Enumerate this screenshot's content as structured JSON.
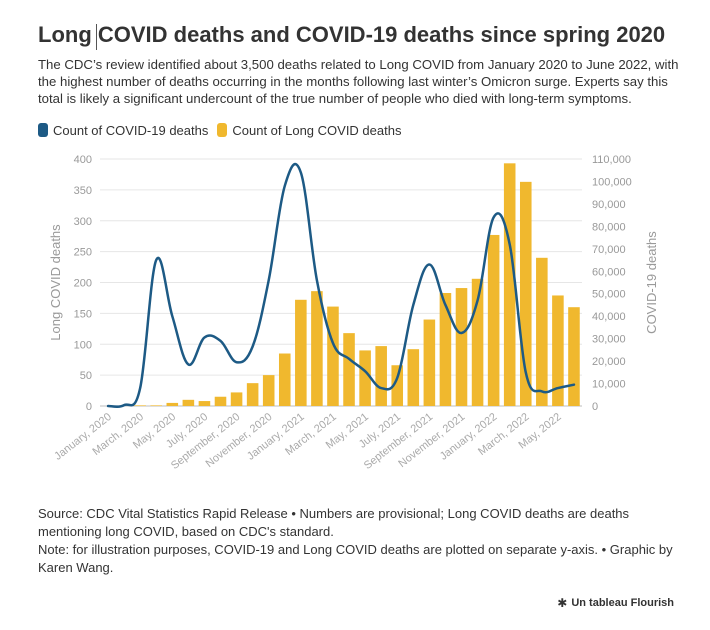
{
  "title": "Long COVID deaths and COVID-19 deaths since spring 2020",
  "subtitle": "The CDC’s review identified about 3,500 deaths related to Long COVID from January 2020 to June 2022, with the highest number of deaths occurring in the months following last winter’s Omicron surge. Experts say this total is likely a significant undercount of the true number of people who died with long-term symptoms.",
  "legend": [
    {
      "label": "Count of COVID-19 deaths",
      "color": "#1d5a85"
    },
    {
      "label": "Count of Long COVID deaths",
      "color": "#f0b82e"
    }
  ],
  "footer": {
    "source": "Source: CDC Vital Statistics Rapid Release • Numbers are provisional; Long COVID deaths are deaths mentioning long COVID, based on CDC's standard.",
    "note": "Note: for illustration purposes, COVID-19 and Long COVID deaths are plotted on separate y-axis. • Graphic by Karen Wang."
  },
  "credit": {
    "icon": "asterisk-icon",
    "label": "Un tableau Flourish"
  },
  "chart_data": {
    "type": "bar",
    "categories": [
      "January, 2020",
      "February, 2020",
      "March, 2020",
      "April, 2020",
      "May, 2020",
      "June, 2020",
      "July, 2020",
      "August, 2020",
      "September, 2020",
      "October, 2020",
      "November, 2020",
      "December, 2020",
      "January, 2021",
      "February, 2021",
      "March, 2021",
      "April, 2021",
      "May, 2021",
      "June, 2021",
      "July, 2021",
      "August, 2021",
      "September, 2021",
      "October, 2021",
      "November, 2021",
      "December, 2021",
      "January, 2022",
      "February, 2022",
      "March, 2022",
      "April, 2022",
      "May, 2022",
      "June, 2022"
    ],
    "tick_labels": [
      "January, 2020",
      "",
      "March, 2020",
      "",
      "May, 2020",
      "",
      "July, 2020",
      "",
      "September, 2020",
      "",
      "November, 2020",
      "",
      "January, 2021",
      "",
      "March, 2021",
      "",
      "May, 2021",
      "",
      "July, 2021",
      "",
      "September, 2021",
      "",
      "November, 2021",
      "",
      "January, 2022",
      "",
      "March, 2022",
      "",
      "May, 2022",
      ""
    ],
    "series": [
      {
        "name": "Count of Long COVID deaths",
        "type": "bar",
        "axis": "left",
        "color": "#f0b82e",
        "values": [
          0,
          0,
          1,
          1,
          5,
          10,
          8,
          15,
          22,
          37,
          50,
          85,
          172,
          186,
          161,
          118,
          90,
          97,
          66,
          92,
          140,
          183,
          191,
          206,
          277,
          393,
          363,
          240,
          179,
          160
        ]
      },
      {
        "name": "Count of COVID-19 deaths",
        "type": "line",
        "axis": "right",
        "color": "#1d5a85",
        "values": [
          0,
          400,
          8000,
          65000,
          40000,
          18500,
          30500,
          29000,
          19500,
          26500,
          56000,
          98000,
          104000,
          56000,
          28000,
          21000,
          15500,
          8000,
          12500,
          45000,
          63000,
          45000,
          32500,
          47000,
          84000,
          72000,
          15000,
          6500,
          8000,
          9500
        ]
      }
    ],
    "y_left": {
      "label": "Long COVID deaths",
      "min": 0,
      "max": 400,
      "ticks": [
        "0",
        "50",
        "100",
        "150",
        "200",
        "250",
        "300",
        "350",
        "400"
      ]
    },
    "y_right": {
      "label": "COVID-19 deaths",
      "min": 0,
      "max": 110000,
      "ticks": [
        "0",
        "10,000",
        "20,000",
        "30,000",
        "40,000",
        "50,000",
        "60,000",
        "70,000",
        "80,000",
        "90,000",
        "100,000",
        "110,000"
      ]
    },
    "grid": true,
    "legend_position": "top-left"
  }
}
